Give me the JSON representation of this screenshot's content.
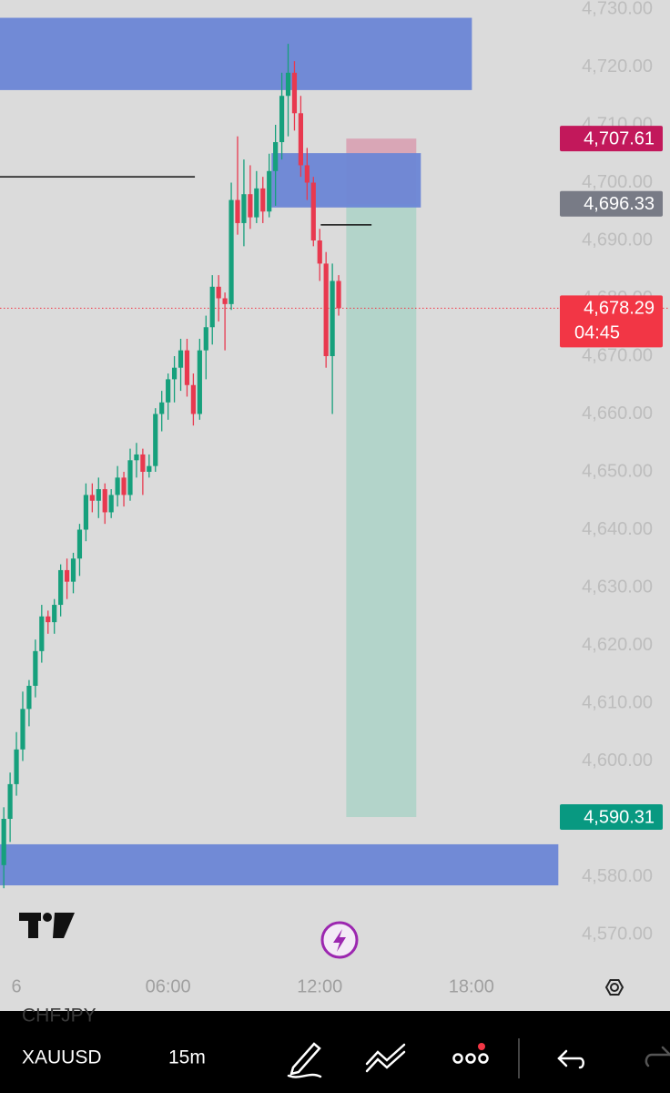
{
  "chart_data": {
    "type": "candlestick",
    "series": {
      "up_color": "#16a07c",
      "down_color": "#e8394f",
      "x": [
        -0.5,
        -0.25,
        0,
        0.25,
        0.5,
        0.75,
        1,
        1.25,
        1.5,
        1.75,
        2,
        2.25,
        2.5,
        2.75,
        3,
        3.25,
        3.5,
        3.75,
        4,
        4.25,
        4.5,
        4.75,
        5,
        5.25,
        5.5,
        5.75,
        6,
        6.25,
        6.5,
        6.75,
        7,
        7.25,
        7.5,
        7.75,
        8,
        8.25,
        8.5,
        8.75,
        9,
        9.25,
        9.5,
        9.75,
        10,
        10.25,
        10.5,
        10.75,
        11,
        11.25,
        11.5,
        11.75,
        12,
        12.25,
        12.5,
        12.75
      ],
      "open": [
        4582,
        4590,
        4596,
        4602,
        4609,
        4613,
        4619,
        4625,
        4624,
        4627,
        4633,
        4631,
        4635,
        4640,
        4646,
        4645,
        4647,
        4643,
        4646,
        4649,
        4646,
        4652,
        4653,
        4650,
        4651,
        4660,
        4662,
        4666,
        4668,
        4671,
        4665,
        4660,
        4671,
        4675,
        4682,
        4680,
        4679,
        4697,
        4693,
        4698,
        4694,
        4699,
        4695,
        4702,
        4707,
        4715,
        4719,
        4712,
        4703,
        4700,
        4690,
        4686,
        4670,
        4683
      ],
      "high": [
        4592,
        4598,
        4605,
        4612,
        4614,
        4621,
        4627,
        4626,
        4628,
        4634,
        4635,
        4636,
        4641,
        4648,
        4648,
        4649,
        4648,
        4647,
        4651,
        4650,
        4654,
        4655,
        4654,
        4653,
        4661,
        4664,
        4667,
        4670,
        4673,
        4673,
        4667,
        4673,
        4677,
        4684,
        4684,
        4681,
        4700,
        4708,
        4704,
        4703,
        4702,
        4701,
        4705,
        4710,
        4719,
        4724,
        4721,
        4715,
        4706,
        4701,
        4692,
        4688,
        4686,
        4684
      ],
      "low": [
        4578,
        4586,
        4594,
        4600,
        4606,
        4611,
        4617,
        4622,
        4622,
        4625,
        4628,
        4629,
        4632,
        4638,
        4643,
        4642,
        4641,
        4642,
        4644,
        4644,
        4645,
        4649,
        4646,
        4649,
        4650,
        4657,
        4659,
        4662,
        4664,
        4663,
        4658,
        4659,
        4666,
        4672,
        4676,
        4671,
        4678,
        4691,
        4689,
        4692,
        4693,
        4693,
        4694,
        4696,
        4704,
        4708,
        4709,
        4701,
        4697,
        4689,
        4683,
        4668,
        4660,
        4677
      ],
      "close": [
        4590,
        4596,
        4602,
        4609,
        4613,
        4619,
        4625,
        4624,
        4627,
        4633,
        4631,
        4635,
        4640,
        4646,
        4645,
        4647,
        4643,
        4646,
        4649,
        4646,
        4652,
        4653,
        4650,
        4651,
        4660,
        4662,
        4666,
        4668,
        4671,
        4665,
        4660,
        4671,
        4675,
        4682,
        4680,
        4679,
        4697,
        4693,
        4698,
        4694,
        4699,
        4695,
        4702,
        4707,
        4715,
        4719,
        4712,
        4703,
        4700,
        4690,
        4686,
        4670,
        4683,
        4678.29
      ]
    },
    "xlim": [
      -0.65,
      21.5
    ],
    "ylim": [
      4570,
      4730
    ],
    "xticks": [
      {
        "value": 0,
        "label": "6"
      },
      {
        "value": 6,
        "label": "06:00"
      },
      {
        "value": 12,
        "label": "12:00"
      },
      {
        "value": 18,
        "label": "18:00"
      }
    ],
    "yticks": [
      {
        "value": 4570,
        "label": "4,570.00"
      },
      {
        "value": 4580,
        "label": "4,580.00"
      },
      {
        "value": 4590,
        "label": "4,590.00"
      },
      {
        "value": 4600,
        "label": "4,600.00"
      },
      {
        "value": 4610,
        "label": "4,610.00"
      },
      {
        "value": 4620,
        "label": "4,620.00"
      },
      {
        "value": 4630,
        "label": "4,630.00"
      },
      {
        "value": 4640,
        "label": "4,640.00"
      },
      {
        "value": 4650,
        "label": "4,650.00"
      },
      {
        "value": 4660,
        "label": "4,660.00"
      },
      {
        "value": 4670,
        "label": "4,670.00"
      },
      {
        "value": 4680,
        "label": "4,680.00"
      },
      {
        "value": 4690,
        "label": "4,690.00"
      },
      {
        "value": 4700,
        "label": "4,700.00"
      },
      {
        "value": 4710,
        "label": "4,710.00"
      },
      {
        "value": 4720,
        "label": "4,720.00"
      },
      {
        "value": 4730,
        "label": "4,730.00"
      }
    ],
    "zones": [
      {
        "y": [
          4716,
          4728.5
        ],
        "x": [
          -0.65,
          18.02
        ],
        "color": "#6b86d6"
      },
      {
        "y": [
          4695.7,
          4705.1
        ],
        "x": [
          10.09,
          16.0
        ],
        "color": "#6b86d6"
      },
      {
        "y": [
          4578.5,
          4585.6
        ],
        "x": [
          -0.65,
          21.44
        ],
        "color": "#6b86d6"
      }
    ],
    "lines": [
      {
        "y": 4701,
        "x": [
          -0.65,
          7.06
        ]
      },
      {
        "y": 4692.7,
        "x": [
          12.04,
          14.05
        ]
      }
    ],
    "position": {
      "x": [
        13.05,
        15.82
      ],
      "profit_color": "#b3d4ca",
      "loss_color": "#d9a6b6",
      "stop": {
        "value": 4707.61,
        "label": "4,707.61",
        "color": "#c2185b"
      },
      "entry": {
        "value": 4696.33,
        "label": "4,696.33",
        "color": "#787b86"
      },
      "target": {
        "value": 4590.31,
        "label": "4,590.31",
        "color": "#089981"
      }
    },
    "last_price": {
      "value": 4678.29,
      "label": "4,678.29",
      "countdown": "04:45",
      "color": "#f23645"
    }
  },
  "toolbar": {
    "hidden_symbol": "CHFJPY",
    "symbol": "XAUUSD",
    "interval": "15m"
  }
}
